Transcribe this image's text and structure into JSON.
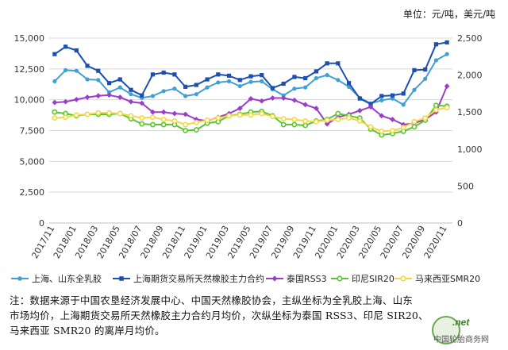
{
  "chart_data": {
    "type": "line",
    "unit_label": "单位：元/吨，美元/吨",
    "categories": [
      "2017/11",
      "2017/12",
      "2018/01",
      "2018/02",
      "2018/03",
      "2018/04",
      "2018/05",
      "2018/06",
      "2018/07",
      "2018/08",
      "2018/09",
      "2018/10",
      "2018/11",
      "2018/12",
      "2019/01",
      "2019/02",
      "2019/03",
      "2019/04",
      "2019/05",
      "2019/06",
      "2019/07",
      "2019/08",
      "2019/09",
      "2019/10",
      "2019/11",
      "2019/12",
      "2020/01",
      "2020/02",
      "2020/03",
      "2020/04",
      "2020/05",
      "2020/06",
      "2020/07",
      "2020/08",
      "2020/09",
      "2020/10",
      "2020/11"
    ],
    "x_tick_labels": [
      "2017/11",
      "2018/01",
      "2018/03",
      "2018/05",
      "2018/07",
      "2018/09",
      "2018/11",
      "2019/01",
      "2019/03",
      "2019/05",
      "2019/07",
      "2019/09",
      "2019/11",
      "2020/01",
      "2020/03",
      "2020/05",
      "2020/07",
      "2020/09",
      "2020/11"
    ],
    "y_left": {
      "range": [
        0,
        15000
      ],
      "ticks": [
        "0",
        "2,500",
        "5,000",
        "7,500",
        "10,000",
        "12,500",
        "15,000"
      ]
    },
    "y_right": {
      "range": [
        0,
        2500
      ],
      "ticks": [
        "0",
        "500",
        "1,000",
        "1,500",
        "2,000",
        "2,500"
      ]
    },
    "grid": true,
    "legend_position": "bottom",
    "series": [
      {
        "name": "上海、山东全乳胶",
        "axis": "left",
        "marker": "circle",
        "color": "#3ea0d4",
        "values": [
          11500,
          12400,
          12350,
          11650,
          11600,
          10600,
          11000,
          10450,
          10150,
          10300,
          10700,
          10900,
          10300,
          10450,
          11000,
          11400,
          11500,
          11100,
          11450,
          11500,
          10850,
          10350,
          10900,
          11000,
          11750,
          12000,
          11600,
          11050,
          10150,
          9700,
          9950,
          10100,
          9600,
          10800,
          11700,
          13200,
          13700
        ]
      },
      {
        "name": "上海期货交易所天然橡胶主力合约",
        "axis": "left",
        "marker": "square",
        "color": "#1c4fb0",
        "values": [
          13700,
          14300,
          14000,
          12750,
          12350,
          11350,
          11650,
          10800,
          10350,
          12050,
          12200,
          12050,
          11050,
          11200,
          11650,
          12050,
          11950,
          11600,
          11900,
          12000,
          10950,
          11300,
          11850,
          11750,
          12300,
          12950,
          12950,
          11350,
          10100,
          9650,
          10300,
          10350,
          10500,
          12400,
          12450,
          14500,
          14650
        ]
      },
      {
        "name": "泰国RSS3",
        "axis": "right",
        "marker": "diamond",
        "color": "#9b3dcb",
        "values": [
          1630,
          1640,
          1670,
          1700,
          1720,
          1730,
          1700,
          1640,
          1620,
          1500,
          1500,
          1480,
          1470,
          1400,
          1380,
          1430,
          1480,
          1550,
          1680,
          1650,
          1690,
          1690,
          1660,
          1600,
          1550,
          1340,
          1430,
          1470,
          1520,
          1570,
          1450,
          1400,
          1330,
          1350,
          1400,
          1500,
          1850
        ]
      },
      {
        "name": "印尼SIR20",
        "axis": "right",
        "marker": "circle-open",
        "color": "#5ac52e",
        "values": [
          1500,
          1480,
          1450,
          1470,
          1470,
          1470,
          1480,
          1410,
          1340,
          1330,
          1330,
          1330,
          1250,
          1260,
          1350,
          1370,
          1450,
          1470,
          1500,
          1510,
          1450,
          1330,
          1330,
          1320,
          1380,
          1400,
          1480,
          1450,
          1420,
          1270,
          1190,
          1210,
          1240,
          1300,
          1390,
          1590,
          1580
        ]
      },
      {
        "name": "马来西亚SMR20",
        "axis": "right",
        "marker": "circle-open",
        "color": "#f0d84a",
        "values": [
          1420,
          1430,
          1460,
          1470,
          1490,
          1490,
          1480,
          1450,
          1420,
          1430,
          1400,
          1380,
          1330,
          1360,
          1390,
          1420,
          1450,
          1460,
          1460,
          1480,
          1440,
          1410,
          1400,
          1380,
          1370,
          1390,
          1400,
          1420,
          1380,
          1300,
          1240,
          1250,
          1290,
          1370,
          1420,
          1530,
          1560
        ]
      }
    ]
  },
  "note": {
    "line1": "注：数据来源于中国农垦经济发展中心、中国天然橡胶协会，主纵坐标为全乳胶上海、山东",
    "line2": "市场均价，上海期货交易所天然橡胶主力合约月均价，次纵坐标为泰国 RSS3、印尼 SIR20、",
    "line3": "马来西亚 SMR20 的离岸月均价。"
  },
  "watermark": {
    "text_top": ".net",
    "text_bottom": "中国轮胎商务网"
  }
}
